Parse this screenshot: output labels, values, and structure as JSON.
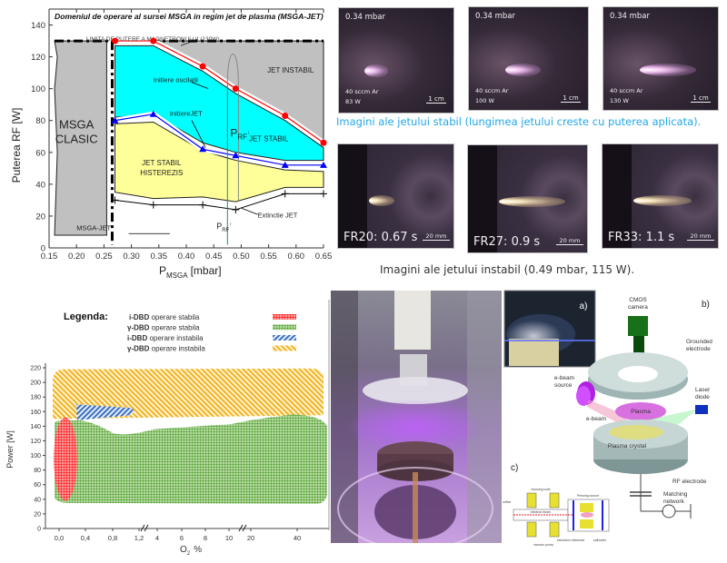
{
  "chart_data": [
    {
      "type": "area",
      "title": "Domeniul de operare al sursei MSGA in regim jet de plasma (MSGA-JET)",
      "xlabel": "P_MSGA [mbar]",
      "xlabel_main": "P",
      "xlabel_sub": "MSGA",
      "xlabel_unit": "[mbar]",
      "ylabel": "Puterea RF [W]",
      "xlim": [
        0.15,
        0.65
      ],
      "ylim": [
        0,
        150
      ],
      "xticks": [
        "0.15",
        "0.20",
        "0.25",
        "0.30",
        "0.35",
        "0.40",
        "0.45",
        "0.50",
        "0.55",
        "0.60",
        "0.65"
      ],
      "xtick_values": [
        0.15,
        0.2,
        0.25,
        0.3,
        0.35,
        0.4,
        0.45,
        0.5,
        0.55,
        0.6,
        0.65
      ],
      "yticks": [
        "0",
        "20",
        "40",
        "60",
        "80",
        "100",
        "120",
        "140"
      ],
      "ytick_values": [
        0,
        20,
        40,
        60,
        80,
        100,
        120,
        140
      ],
      "power_limit": {
        "label": "LIMITA DE PUTERE A MAGNETRONULUI (130W)",
        "value": 130
      },
      "regions": [
        {
          "name": "MSGA CLASIC",
          "lines": [
            "MSGA",
            "CLASIC"
          ],
          "color": "#c0c0c0",
          "polygon": [
            [
              0.16,
              130
            ],
            [
              0.255,
              130
            ],
            [
              0.255,
              8
            ],
            [
              0.16,
              8
            ],
            [
              0.165,
              60
            ],
            [
              0.16,
              100
            ],
            [
              0.165,
              120
            ]
          ]
        },
        {
          "name": "JET INSTABIL",
          "lines": [
            "JET INSTABIL"
          ],
          "color": "#c0c0c0",
          "polygon": [
            [
              0.27,
              130
            ],
            [
              0.65,
              130
            ],
            [
              0.65,
              66
            ],
            [
              0.58,
              83
            ],
            [
              0.49,
              100
            ],
            [
              0.43,
              114
            ],
            [
              0.34,
              130
            ]
          ]
        },
        {
          "name": "JET STABIL",
          "lines": [
            "JET STABIL"
          ],
          "color": "#00ffff",
          "polygon": [
            [
              0.27,
              127
            ],
            [
              0.34,
              127
            ],
            [
              0.43,
              111
            ],
            [
              0.49,
              97
            ],
            [
              0.58,
              80
            ],
            [
              0.65,
              63
            ],
            [
              0.65,
              55
            ],
            [
              0.58,
              55
            ],
            [
              0.49,
              60
            ],
            [
              0.43,
              66
            ],
            [
              0.34,
              84
            ],
            [
              0.27,
              82
            ]
          ]
        },
        {
          "name": "JET STABIL HISTEREZIS",
          "lines": [
            "JET STABIL",
            "HISTEREZIS"
          ],
          "color": "#ffff99",
          "polygon": [
            [
              0.27,
              78
            ],
            [
              0.34,
              79
            ],
            [
              0.43,
              61
            ],
            [
              0.49,
              55
            ],
            [
              0.58,
              49
            ],
            [
              0.65,
              48
            ],
            [
              0.65,
              38
            ],
            [
              0.58,
              38
            ],
            [
              0.49,
              29
            ],
            [
              0.43,
              32
            ],
            [
              0.34,
              31
            ],
            [
              0.27,
              35
            ]
          ]
        }
      ],
      "series": [
        {
          "name": "Initiere oscilatii",
          "marker": "circle",
          "color": "#ff0000",
          "x": [
            0.27,
            0.34,
            0.43,
            0.49,
            0.58,
            0.65
          ],
          "y": [
            130,
            130,
            114,
            100,
            83,
            66
          ]
        },
        {
          "name": "Initiere JET",
          "marker": "triangle",
          "color": "#0000ff",
          "x": [
            0.27,
            0.34,
            0.43,
            0.49,
            0.58,
            0.65
          ],
          "y": [
            80,
            84,
            62,
            58,
            52,
            52
          ]
        },
        {
          "name": "Extinctie JET",
          "marker": "plus",
          "color": "#000000",
          "x": [
            0.27,
            0.34,
            0.43,
            0.49,
            0.58,
            0.65
          ],
          "y": [
            30,
            27,
            27,
            24,
            34,
            34
          ]
        }
      ],
      "annotations": [
        {
          "text": "Initiere oscilatii",
          "x": 0.34,
          "y": 104
        },
        {
          "text": "InitiereJET",
          "x": 0.37,
          "y": 83
        },
        {
          "text": "Extinctie JET",
          "x": 0.53,
          "y": 19
        },
        {
          "text": "MSGA-JET",
          "x": 0.2,
          "y": 11
        },
        {
          "text": "P_RF↓",
          "x": 0.485,
          "y": 72
        },
        {
          "text": "P_RF↑",
          "x": 0.46,
          "y": 14
        }
      ],
      "prf_markers": [
        {
          "label_main": "P",
          "label_sub": "RF",
          "arrow": "↓",
          "x": 0.495
        },
        {
          "label_main": "P",
          "label_sub": "RF",
          "arrow": "↑",
          "x": 0.475
        }
      ],
      "grid": false
    },
    {
      "type": "area",
      "title": "",
      "xlabel": "O2 %",
      "xlabel_main": "O",
      "xlabel_sub": "2",
      "xlabel_unit": "%",
      "ylabel": "Power [W]",
      "ylim": [
        0,
        220
      ],
      "xticks": [
        "0,0",
        "0,4",
        "0,8",
        "1,2",
        "4",
        "6",
        "8",
        "10",
        "20",
        "40"
      ],
      "yticks": [
        "0",
        "20",
        "40",
        "60",
        "80",
        "100",
        "120",
        "140",
        "160",
        "180",
        "200",
        "220"
      ],
      "ytick_values": [
        0,
        20,
        40,
        60,
        80,
        100,
        120,
        140,
        160,
        180,
        200,
        220
      ],
      "x_axis_breaks": [
        "1,2–4",
        "10–20"
      ],
      "legend": {
        "title": "Legenda:",
        "position": "top",
        "entries": [
          {
            "bold": "i-DBD",
            "text": "operare stabila",
            "color": "#ff3030",
            "pattern": "dots"
          },
          {
            "bold": "γ-DBD",
            "text": "operare stabila",
            "color": "#55aa33",
            "pattern": "dots"
          },
          {
            "bold": "i-DBD",
            "text": "operare instabila",
            "color": "#3a6fc0",
            "pattern": "hatch"
          },
          {
            "bold": "γ-DBD",
            "text": "operare instabila",
            "color": "#f5b820",
            "pattern": "hatch"
          }
        ]
      },
      "regions": [
        {
          "name": "γ-DBD operare instabila",
          "color": "#f5b820",
          "x_range": [
            "0,0",
            "50"
          ],
          "y_range": [
            130,
            220
          ]
        },
        {
          "name": "γ-DBD operare stabila",
          "color": "#55aa33",
          "x_range": [
            "0,0",
            "50"
          ],
          "y_range": [
            35,
            148
          ]
        },
        {
          "name": "i-DBD operare instabila",
          "color": "#3a6fc0",
          "x_range": [
            "0,3",
            "1,1"
          ],
          "y_range": [
            143,
            170
          ]
        },
        {
          "name": "i-DBD operare stabila",
          "color": "#ff2020",
          "x_range": [
            "0,0",
            "0,2"
          ],
          "y_range": [
            38,
            152
          ]
        }
      ],
      "grid": false
    }
  ],
  "photos_stable": {
    "caption": "Imagini ale jetului stabil (lungimea jetului creste cu puterea aplicata).",
    "caption_color": "#20a8e8",
    "items": [
      {
        "pressure": "0.34 mbar",
        "flow": "40 sccm Ar",
        "power": "83 W",
        "scale": "1 cm",
        "jet_length": 0.15
      },
      {
        "pressure": "0.34 mbar",
        "flow": "40 sccm Ar",
        "power": "100 W",
        "scale": "1 cm",
        "jet_length": 0.3
      },
      {
        "pressure": "0.34 mbar",
        "flow": "40 sccm Ar",
        "power": "130 W",
        "scale": "1 cm",
        "jet_length": 0.55
      }
    ]
  },
  "photos_unstable": {
    "caption": "Imagini ale jetului instabil (0.49 mbar, 115 W).",
    "caption_color": "#333333",
    "items": [
      {
        "frame": "FR20: 0.67 s",
        "scale": "20 mm",
        "jet_length": 0.2
      },
      {
        "frame": "FR27: 0.9 s",
        "scale": "20 mm",
        "jet_length": 0.7
      },
      {
        "frame": "FR33: 1.1 s",
        "scale": "20 mm",
        "jet_length": 0.6
      }
    ]
  },
  "dbd_photo": {
    "description": "DBD reactor discharge photo (purple plasma)"
  },
  "schematic": {
    "panel_a": "a)",
    "panel_b": "b)",
    "panel_c": "c)",
    "labels": {
      "camera": [
        "CMOS",
        "camera"
      ],
      "grounded": [
        "Grounded",
        "electrode"
      ],
      "ebeam_source": [
        "e-beam",
        "source"
      ],
      "laser": [
        "Laser",
        "diode"
      ],
      "plasma": "Plasma",
      "ebeam": "e-beam",
      "crystal": "Plasma crystal",
      "rf_electrode": "RF electrode",
      "matching": [
        "Matching",
        "network"
      ]
    },
    "c_labels": [
      "focusing coils",
      "Penning source",
      "electron beam",
      "orifice",
      "vacuum pump",
      "extraction electrode",
      "cathodes"
    ]
  }
}
